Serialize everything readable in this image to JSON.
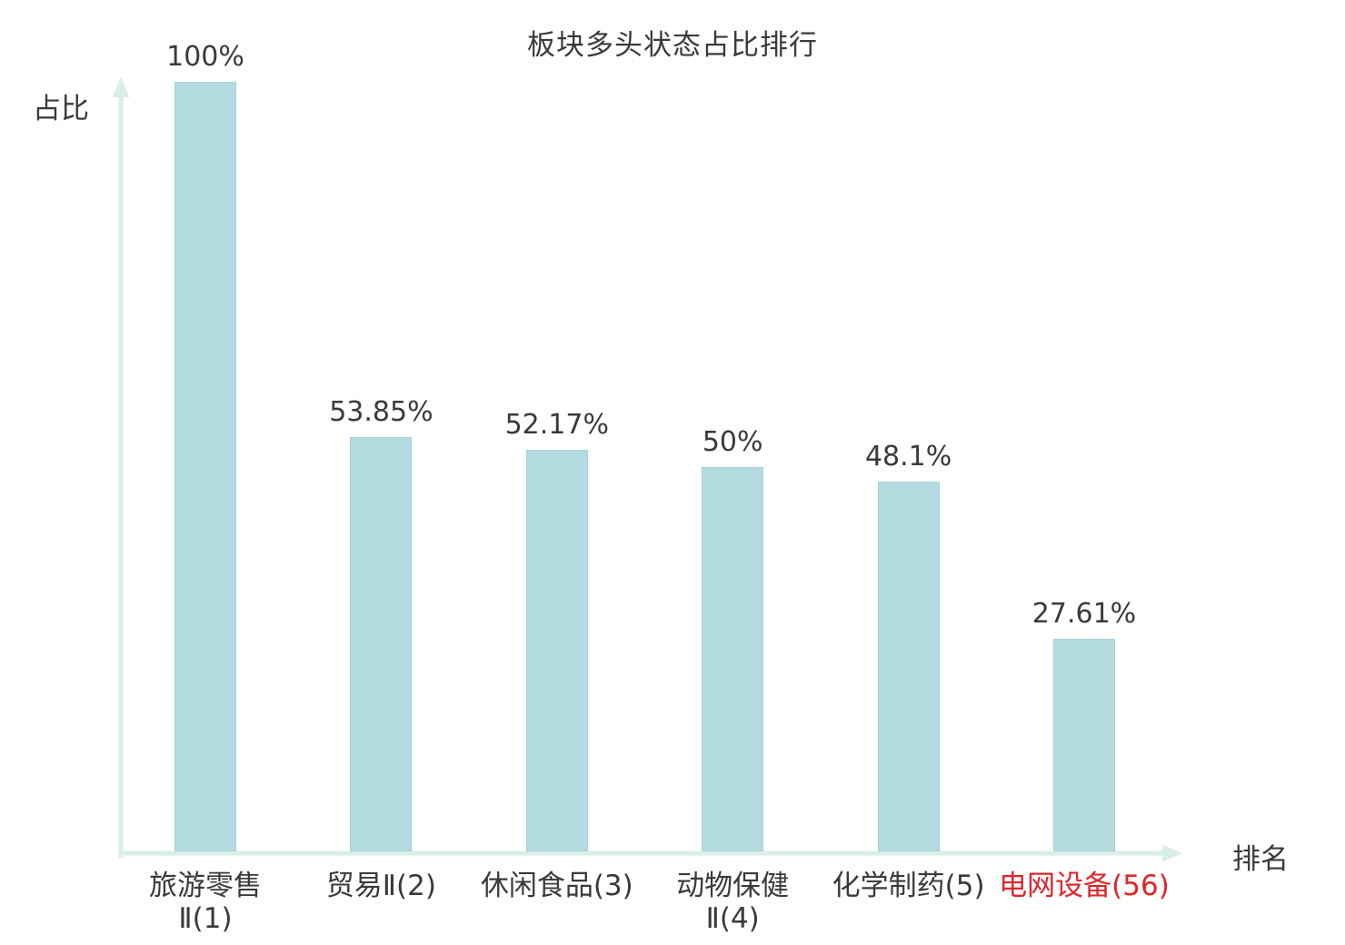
{
  "chart_data": {
    "type": "bar",
    "title": "板块多头状态占比排行",
    "xlabel": "排名",
    "ylabel": "占比",
    "categories": [
      "旅游零售Ⅱ(1)",
      "贸易Ⅱ(2)",
      "休闲食品(3)",
      "动物保健Ⅱ(4)",
      "化学制药(5)",
      "电网设备(56)"
    ],
    "category_lines": [
      [
        "旅游零售",
        "Ⅱ(1)"
      ],
      [
        "贸易Ⅱ(2)"
      ],
      [
        "休闲食品(3)"
      ],
      [
        "动物保健",
        "Ⅱ(4)"
      ],
      [
        "化学制药(5)"
      ],
      [
        "电网设备(56)"
      ]
    ],
    "values": [
      100,
      53.85,
      52.17,
      50,
      48.1,
      27.61
    ],
    "value_labels": [
      "100%",
      "53.85%",
      "52.17%",
      "50%",
      "48.1%",
      "27.61%"
    ],
    "ylim": [
      0,
      100
    ],
    "grid": false,
    "legend": false,
    "bar_color": "#b4dbe0",
    "bar_border_color": "#a7d2d9",
    "axis_color": "#d8eee6",
    "text_color": "#3a3a3a",
    "highlight_category_index": 5,
    "highlight_color": "#e0252b"
  }
}
